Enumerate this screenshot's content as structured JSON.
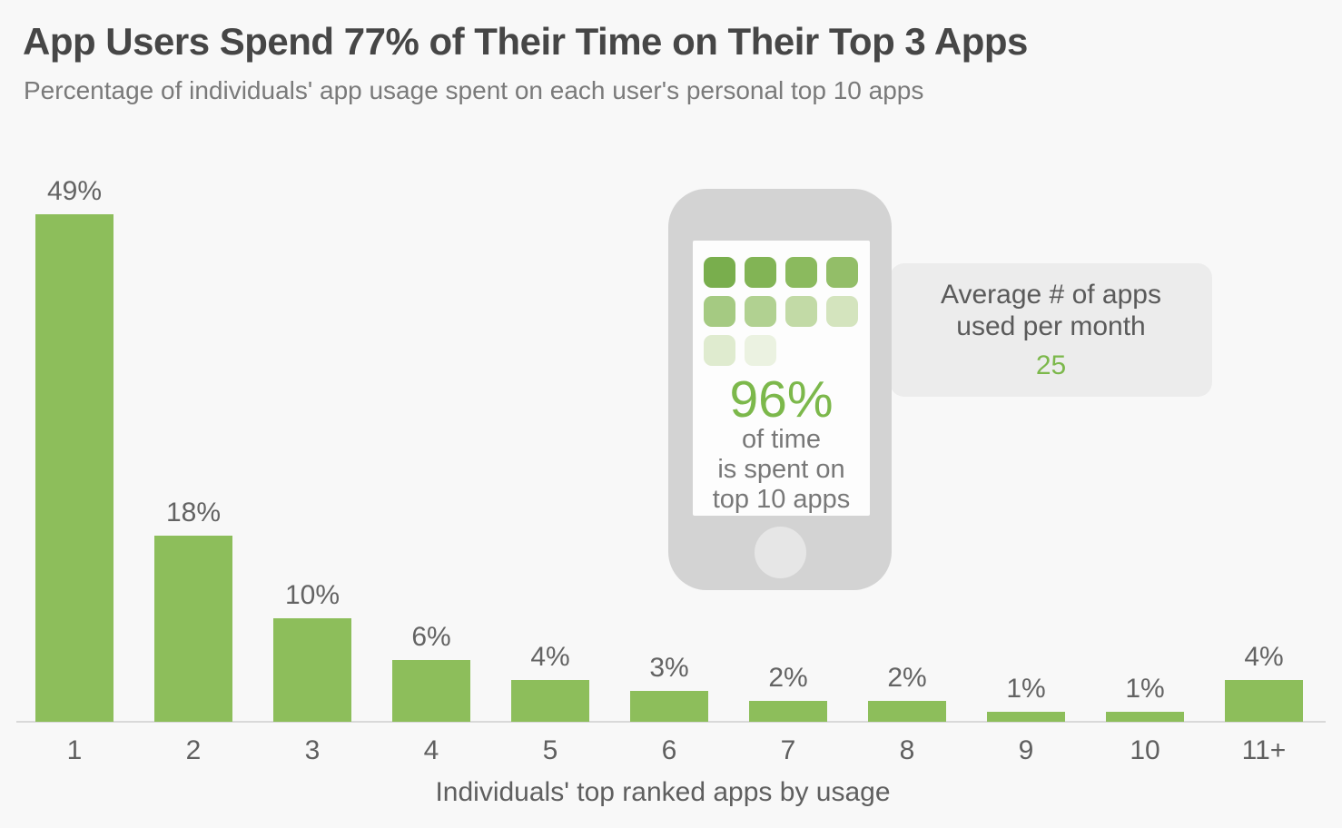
{
  "header": {
    "title": "App Users Spend 77% of Their Time on Their Top 3 Apps",
    "subtitle": "Percentage of individuals' app usage spent on each user's personal top 10 apps"
  },
  "chart_data": {
    "type": "bar",
    "categories": [
      "1",
      "2",
      "3",
      "4",
      "5",
      "6",
      "7",
      "8",
      "9",
      "10",
      "11+"
    ],
    "values": [
      49,
      18,
      10,
      6,
      4,
      3,
      2,
      2,
      1,
      1,
      4
    ],
    "value_labels": [
      "49%",
      "18%",
      "10%",
      "6%",
      "4%",
      "3%",
      "2%",
      "2%",
      "1%",
      "1%",
      "4%"
    ],
    "title": "App Users Spend 77% of Their Time on Their Top 3 Apps",
    "subtitle": "Percentage of individuals' app usage spent on each user's personal top 10 apps",
    "xlabel": "Individuals' top ranked apps by usage",
    "ylabel": "",
    "ylim": [
      0,
      50
    ],
    "grid": false,
    "legend": false,
    "bar_color": "#8dbe5b"
  },
  "phone": {
    "stat_value": "96%",
    "caption_lines": [
      "of time",
      "is spent on",
      "top 10 apps"
    ],
    "app_icon_colors": [
      "#79ae4d",
      "#82b455",
      "#8bba5e",
      "#93be68",
      "#a5ca82",
      "#b1d191",
      "#c2daa6",
      "#d4e4be",
      "#dfebcf",
      "#ebf2e1"
    ]
  },
  "callout": {
    "line1": "Average # of apps",
    "line2": "used per month",
    "value": "25"
  },
  "colors": {
    "background": "#f8f8f8",
    "bar_green": "#8dbe5b",
    "accent_green": "#7cb84b",
    "title_text": "#464646",
    "subtitle_text": "#7a7a7a",
    "label_text": "#5f5f5f",
    "axis_line": "#d9d9d9",
    "phone_body": "#d3d3d3",
    "phone_screen": "#fdfdfd",
    "home_button": "#e6e6e6",
    "callout_bg": "#ececec"
  }
}
